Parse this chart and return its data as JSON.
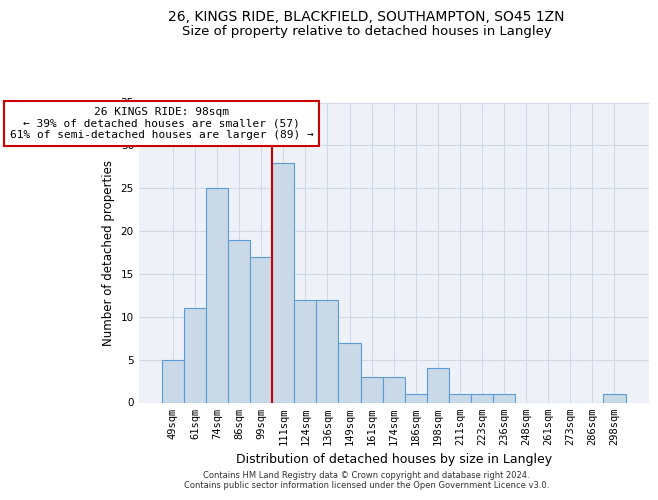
{
  "title1": "26, KINGS RIDE, BLACKFIELD, SOUTHAMPTON, SO45 1ZN",
  "title2": "Size of property relative to detached houses in Langley",
  "xlabel": "Distribution of detached houses by size in Langley",
  "ylabel": "Number of detached properties",
  "categories": [
    "49sqm",
    "61sqm",
    "74sqm",
    "86sqm",
    "99sqm",
    "111sqm",
    "124sqm",
    "136sqm",
    "149sqm",
    "161sqm",
    "174sqm",
    "186sqm",
    "198sqm",
    "211sqm",
    "223sqm",
    "236sqm",
    "248sqm",
    "261sqm",
    "273sqm",
    "286sqm",
    "298sqm"
  ],
  "values": [
    5,
    11,
    25,
    19,
    17,
    28,
    12,
    12,
    7,
    3,
    3,
    1,
    4,
    1,
    1,
    1,
    0,
    0,
    0,
    0,
    1
  ],
  "bar_color": "#c9d9e8",
  "bar_edge_color": "#5b9bd5",
  "vline_x": 4.5,
  "vline_color": "#cc0000",
  "annotation_line1": "26 KINGS RIDE: 98sqm",
  "annotation_line2": "← 39% of detached houses are smaller (57)",
  "annotation_line3": "61% of semi-detached houses are larger (89) →",
  "annotation_box_color": "#ffffff",
  "annotation_box_edge": "#cc0000",
  "ylim": [
    0,
    35
  ],
  "yticks": [
    0,
    5,
    10,
    15,
    20,
    25,
    30,
    35
  ],
  "grid_color": "#d0d8e8",
  "background_color": "#eef2f8",
  "footer": "Contains HM Land Registry data © Crown copyright and database right 2024.\nContains public sector information licensed under the Open Government Licence v3.0.",
  "title1_fontsize": 10,
  "title2_fontsize": 9.5,
  "xlabel_fontsize": 9,
  "ylabel_fontsize": 8.5,
  "tick_fontsize": 7.5,
  "annotation_fontsize": 8,
  "footer_fontsize": 6
}
